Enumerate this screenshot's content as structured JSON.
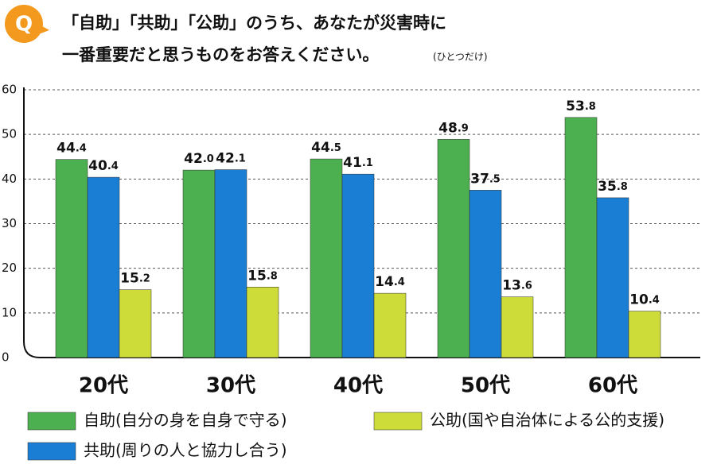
{
  "chart_data": {
    "type": "bar",
    "title": [
      "「自助」「共助」「公助」のうち、あなたが災害時に",
      "一番重要だと思うものをお答えください。"
    ],
    "note": "(ひとつだけ)",
    "badge": "Q",
    "categories": [
      "20代",
      "30代",
      "40代",
      "50代",
      "60代"
    ],
    "series": [
      {
        "name": "自助(自分の身を自身で守る)",
        "color": "#4caf50",
        "values": [
          44.4,
          42,
          44.5,
          48.9,
          53.8
        ],
        "value_labels": [
          "44.4",
          "42.0",
          "44.5",
          "48.9",
          "53.8"
        ]
      },
      {
        "name": "共助(周りの人と協力し合う)",
        "color": "#1a7fd4",
        "values": [
          40.4,
          42.1,
          41.1,
          37.5,
          35.8
        ]
      },
      {
        "name": "公助(国や自治体による公的支援)",
        "color": "#cddc39",
        "values": [
          15.2,
          15.8,
          14.4,
          13.6,
          10.4
        ]
      }
    ],
    "ylim": [
      0,
      60
    ],
    "yticks": [
      0,
      10,
      20,
      30,
      40,
      50,
      60
    ],
    "grid": true
  }
}
